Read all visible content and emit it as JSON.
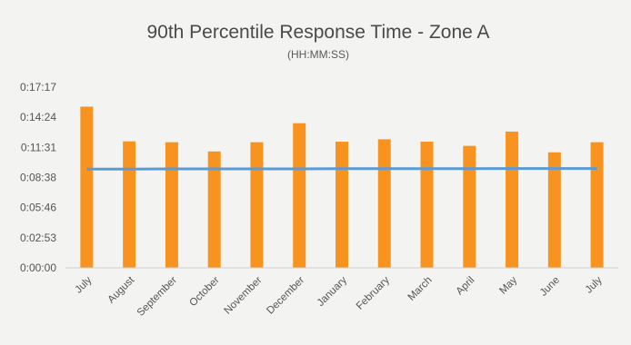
{
  "chart_data": {
    "type": "bar",
    "title": "90th Percentile Response Time - Zone A",
    "subtitle": "(HH:MM:SS)",
    "xlabel": "",
    "ylabel": "",
    "categories": [
      "July",
      "August",
      "September",
      "October",
      "November",
      "December",
      "January",
      "February",
      "March",
      "April",
      "May",
      "June",
      "July"
    ],
    "y_ticks": [
      "0:00:00",
      "0:02:53",
      "0:05:46",
      "0:08:38",
      "0:11:31",
      "0:14:24",
      "0:17:17"
    ],
    "ylim_seconds": [
      0,
      1037
    ],
    "series": [
      {
        "type": "bar",
        "values_seconds": [
          925,
          726,
          721,
          668,
          721,
          830,
          724,
          738,
          724,
          700,
          782,
          663,
          721
        ]
      },
      {
        "type": "line",
        "values_seconds": [
          567,
          567,
          568,
          568,
          568,
          568,
          569,
          569,
          569,
          569,
          570,
          570,
          570
        ]
      }
    ],
    "grid": false,
    "legend": "none",
    "colors": {
      "bar": "#f7931e",
      "line": "#5a9bd5",
      "axis": "#cfcfcf"
    }
  }
}
